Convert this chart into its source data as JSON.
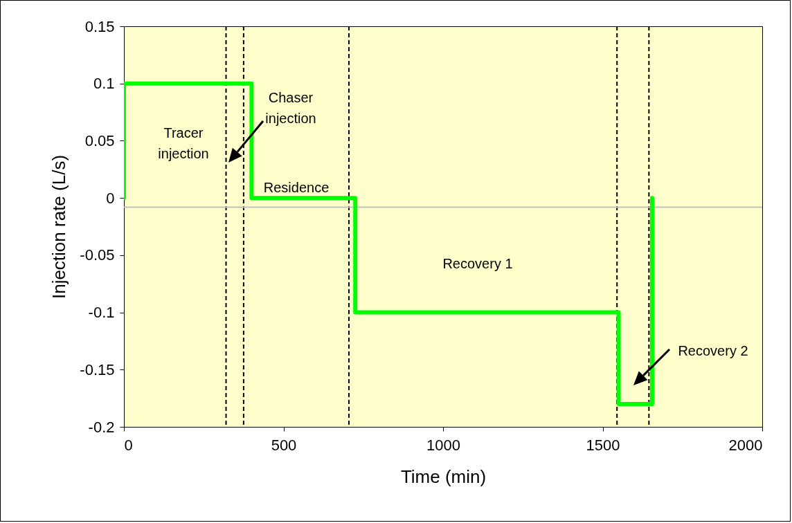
{
  "chart_data": {
    "type": "line",
    "xlabel": "Time (min)",
    "ylabel": "Injection rate (L/s)",
    "series": [
      {
        "color": "#00ff00",
        "x": [
          0,
          0,
          400,
          400,
          725,
          725,
          1550,
          1550,
          1655,
          1655
        ],
        "values": [
          0,
          0.1,
          0.1,
          0,
          0,
          -0.1,
          -0.1,
          -0.18,
          -0.18,
          0
        ]
      }
    ],
    "xlim": [
      0,
      2000
    ],
    "xticks": [
      0,
      500,
      1000,
      1500,
      2000
    ],
    "ylim": [
      -0.2,
      0.15
    ],
    "yticks": [
      -0.2,
      -0.15,
      -0.1,
      -0.05,
      0,
      0.05,
      0.1,
      0.15
    ],
    "grid": false,
    "marker": "none",
    "line_style": "solid",
    "ref_lines": [
      {
        "axis": "x",
        "value": 320,
        "color": "#000000",
        "line_style": "dashed"
      },
      {
        "axis": "x",
        "value": 375,
        "color": "#000000",
        "line_style": "dashed"
      },
      {
        "axis": "x",
        "value": 705,
        "color": "#000000",
        "line_style": "dashed"
      },
      {
        "axis": "x",
        "value": 1545,
        "color": "#000000",
        "line_style": "dashed"
      },
      {
        "axis": "x",
        "value": 1645,
        "color": "#000000",
        "line_style": "dashed"
      },
      {
        "axis": "y",
        "value": -0.008,
        "color": "#c0c0c0",
        "line_style": "solid"
      }
    ],
    "annotations": [
      "Tracer\ninjection",
      "Chaser\ninjection",
      "Residence",
      "Recovery 1",
      "Recovery 2"
    ]
  }
}
